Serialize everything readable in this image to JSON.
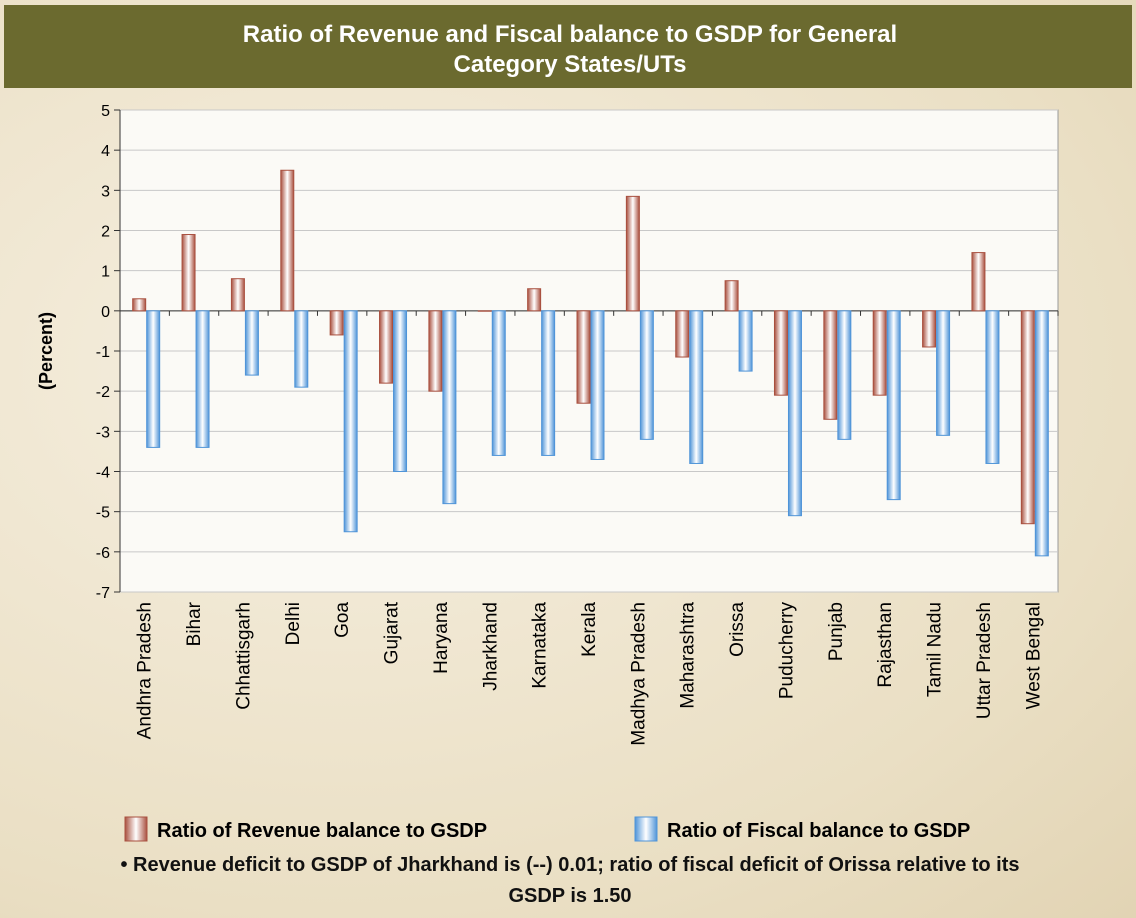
{
  "chart_data": {
    "type": "bar",
    "title": "Ratio of Revenue and Fiscal balance to GSDP for General Category States/UTs",
    "y_label": "(Percent)",
    "categories": [
      "Andhra Pradesh",
      "Bihar",
      "Chhattisgarh",
      "Delhi",
      "Goa",
      "Gujarat",
      "Haryana",
      "Jharkhand",
      "Karnataka",
      "Kerala",
      "Madhya Pradesh",
      "Maharashtra",
      "Orissa",
      "Puducherry",
      "Punjab",
      "Rajasthan",
      "Tamil Nadu",
      "Uttar Pradesh",
      "West Bengal"
    ],
    "series": [
      {
        "name": "Ratio of Revenue balance to GSDP",
        "color": "#a9503f",
        "values": [
          0.3,
          1.9,
          0.8,
          3.5,
          -0.6,
          -1.8,
          -2.0,
          -0.01,
          0.55,
          -2.3,
          2.85,
          -1.15,
          0.75,
          -2.1,
          -2.7,
          -2.1,
          -0.9,
          1.45,
          -5.3
        ]
      },
      {
        "name": "Ratio of Fiscal balance to GSDP",
        "color": "#4f94d8",
        "values": [
          -3.4,
          -3.4,
          -1.6,
          -1.9,
          -5.5,
          -4.0,
          -4.8,
          -3.6,
          -3.6,
          -3.7,
          -3.2,
          -3.8,
          -1.5,
          -5.1,
          -3.2,
          -4.7,
          -3.1,
          -3.8,
          -6.1
        ]
      }
    ],
    "ylim": [
      -7,
      5
    ],
    "yticks": [
      -7,
      -6,
      -5,
      -4,
      -3,
      -2,
      -1,
      0,
      1,
      2,
      3,
      4,
      5
    ],
    "grid": true,
    "note": "• Revenue deficit to GSDP of Jharkhand is (--) 0.01; ratio of fiscal deficit of Orissa relative to its GSDP is 1.50"
  }
}
